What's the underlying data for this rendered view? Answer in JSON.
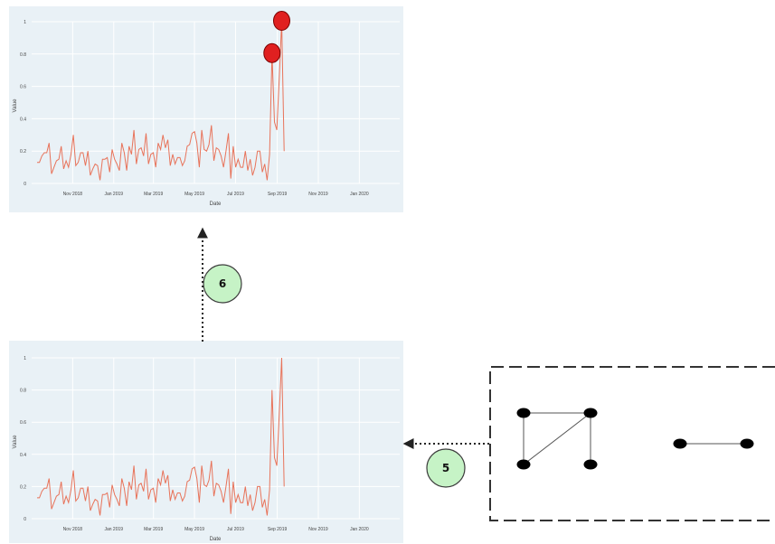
{
  "charts": {
    "top": {
      "title": "",
      "xlabel": "Date",
      "ylabel": "Value"
    },
    "bottom": {
      "title": "",
      "xlabel": "Date",
      "ylabel": "Value"
    }
  },
  "steps": {
    "upper": "6",
    "lower": "5"
  },
  "chart_data": [
    {
      "type": "line",
      "title": "",
      "xlabel": "Date",
      "ylabel": "Value",
      "ylim": [
        0,
        1
      ],
      "y_ticks": [
        "0",
        "0.2",
        "0.4",
        "0.6",
        "0.8",
        "1"
      ],
      "x_ticks": [
        "Nov 2018",
        "Jan 2019",
        "Mar 2019",
        "May 2019",
        "Jul 2019",
        "Sep 2019",
        "Nov 2019",
        "Jan 2020"
      ],
      "x_range": [
        "2018-09-01",
        "2020-03-01"
      ],
      "x_start": "2018-09-09",
      "x_step_days": 3.6,
      "series_color": "#e8735a",
      "anomaly_color": "#e02020",
      "values": [
        0.13,
        0.13,
        0.17,
        0.19,
        0.19,
        0.25,
        0.06,
        0.1,
        0.14,
        0.15,
        0.23,
        0.09,
        0.14,
        0.1,
        0.18,
        0.3,
        0.11,
        0.13,
        0.19,
        0.19,
        0.11,
        0.2,
        0.05,
        0.09,
        0.12,
        0.11,
        0.02,
        0.15,
        0.15,
        0.16,
        0.07,
        0.21,
        0.15,
        0.12,
        0.08,
        0.25,
        0.19,
        0.08,
        0.23,
        0.18,
        0.33,
        0.12,
        0.21,
        0.22,
        0.17,
        0.31,
        0.12,
        0.18,
        0.19,
        0.1,
        0.25,
        0.21,
        0.3,
        0.22,
        0.27,
        0.11,
        0.18,
        0.12,
        0.16,
        0.16,
        0.11,
        0.14,
        0.23,
        0.24,
        0.31,
        0.32,
        0.25,
        0.1,
        0.33,
        0.21,
        0.2,
        0.24,
        0.36,
        0.14,
        0.22,
        0.21,
        0.17,
        0.1,
        0.2,
        0.31,
        0.03,
        0.23,
        0.1,
        0.15,
        0.1,
        0.1,
        0.2,
        0.08,
        0.15,
        0.05,
        0.1,
        0.2,
        0.2,
        0.07,
        0.12,
        0.02,
        0.18,
        0.8,
        0.38,
        0.33,
        0.65,
        1.0,
        0.2
      ],
      "anomalies": [
        97,
        101
      ]
    },
    {
      "type": "line",
      "title": "",
      "xlabel": "Date",
      "ylabel": "Value",
      "ylim": [
        0,
        1
      ],
      "y_ticks": [
        "0",
        "0.2",
        "0.4",
        "0.6",
        "0.8",
        "1"
      ],
      "x_ticks": [
        "Nov 2018",
        "Jan 2019",
        "Mar 2019",
        "May 2019",
        "Jul 2019",
        "Sep 2019",
        "Nov 2019",
        "Jan 2020"
      ],
      "x_range": [
        "2018-09-01",
        "2020-03-01"
      ],
      "x_start": "2018-09-09",
      "x_step_days": 3.6,
      "series_color": "#e8735a",
      "values": [
        0.13,
        0.13,
        0.17,
        0.19,
        0.19,
        0.25,
        0.06,
        0.1,
        0.14,
        0.15,
        0.23,
        0.09,
        0.14,
        0.1,
        0.18,
        0.3,
        0.11,
        0.13,
        0.19,
        0.19,
        0.11,
        0.2,
        0.05,
        0.09,
        0.12,
        0.11,
        0.02,
        0.15,
        0.15,
        0.16,
        0.07,
        0.21,
        0.15,
        0.12,
        0.08,
        0.25,
        0.19,
        0.08,
        0.23,
        0.18,
        0.33,
        0.12,
        0.21,
        0.22,
        0.17,
        0.31,
        0.12,
        0.18,
        0.19,
        0.1,
        0.25,
        0.21,
        0.3,
        0.22,
        0.27,
        0.11,
        0.18,
        0.12,
        0.16,
        0.16,
        0.11,
        0.14,
        0.23,
        0.24,
        0.31,
        0.32,
        0.25,
        0.1,
        0.33,
        0.21,
        0.2,
        0.24,
        0.36,
        0.14,
        0.22,
        0.21,
        0.17,
        0.1,
        0.2,
        0.31,
        0.03,
        0.23,
        0.1,
        0.15,
        0.1,
        0.1,
        0.2,
        0.08,
        0.15,
        0.05,
        0.1,
        0.2,
        0.2,
        0.07,
        0.12,
        0.02,
        0.18,
        0.8,
        0.38,
        0.33,
        0.65,
        1.0,
        0.2
      ],
      "anomalies": []
    }
  ],
  "graph": {
    "node_color": "#000000",
    "edge_color": "#555555",
    "nodes": [
      "a",
      "b",
      "c",
      "d",
      "e",
      "f"
    ],
    "edges": [
      [
        "a",
        "b"
      ],
      [
        "a",
        "c"
      ],
      [
        "b",
        "c"
      ],
      [
        "b",
        "d"
      ],
      [
        "e",
        "f"
      ]
    ]
  },
  "colors": {
    "plot_bg": "#e9f1f6",
    "grid": "#ffffff",
    "badge_fill": "#c6f3c6",
    "badge_stroke": "#3c3c3c"
  }
}
